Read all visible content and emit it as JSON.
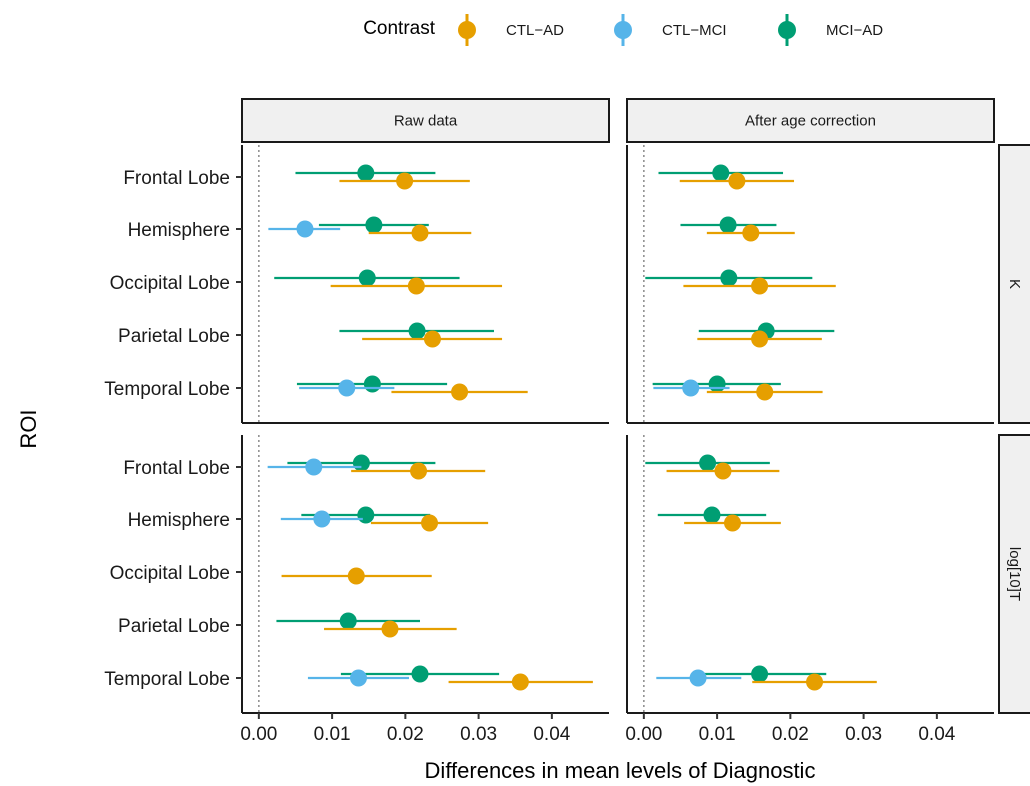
{
  "chart_data": {
    "type": "dot-errorbar",
    "xlabel": "Differences in mean levels of Diagnostic",
    "ylabel": "ROI",
    "xlim": [
      -0.0023,
      0.0478
    ],
    "xticks": [
      0.0,
      0.01,
      0.02,
      0.03,
      0.04
    ],
    "xtick_labels": [
      "0.00",
      "0.01",
      "0.02",
      "0.03",
      "0.04"
    ],
    "reference_line_x": 0,
    "legend": {
      "title": "Contrast",
      "position": "top",
      "entries": [
        {
          "key": "CTL-AD",
          "label": "CTL−AD",
          "color": "#E69F00"
        },
        {
          "key": "CTL-MCI",
          "label": "CTL−MCI",
          "color": "#56B4E9"
        },
        {
          "key": "MCI-AD",
          "label": "MCI−AD",
          "color": "#009E73"
        }
      ]
    },
    "columns": [
      "Raw data",
      "After age correction"
    ],
    "rows": [
      "K",
      "log[10]T"
    ],
    "rois": [
      "Frontal Lobe",
      "Hemisphere",
      "Occipital Lobe",
      "Parietal Lobe",
      "Temporal Lobe"
    ],
    "panels": [
      {
        "row": "K",
        "column": "Raw data",
        "points": [
          {
            "roi": "Frontal Lobe",
            "contrast": "MCI-AD",
            "estimate": 0.0146,
            "lower": 0.005,
            "upper": 0.0241
          },
          {
            "roi": "Frontal Lobe",
            "contrast": "CTL-AD",
            "estimate": 0.0199,
            "lower": 0.011,
            "upper": 0.0288
          },
          {
            "roi": "Hemisphere",
            "contrast": "CTL-MCI",
            "estimate": 0.0063,
            "lower": 0.0013,
            "upper": 0.0111
          },
          {
            "roi": "Hemisphere",
            "contrast": "MCI-AD",
            "estimate": 0.0157,
            "lower": 0.0082,
            "upper": 0.0232
          },
          {
            "roi": "Hemisphere",
            "contrast": "CTL-AD",
            "estimate": 0.022,
            "lower": 0.015,
            "upper": 0.029
          },
          {
            "roi": "Occipital Lobe",
            "contrast": "MCI-AD",
            "estimate": 0.0148,
            "lower": 0.0021,
            "upper": 0.0274
          },
          {
            "roi": "Occipital Lobe",
            "contrast": "CTL-AD",
            "estimate": 0.0215,
            "lower": 0.0098,
            "upper": 0.0332
          },
          {
            "roi": "Parietal Lobe",
            "contrast": "MCI-AD",
            "estimate": 0.0216,
            "lower": 0.011,
            "upper": 0.0321
          },
          {
            "roi": "Parietal Lobe",
            "contrast": "CTL-AD",
            "estimate": 0.0237,
            "lower": 0.0141,
            "upper": 0.0332
          },
          {
            "roi": "Temporal Lobe",
            "contrast": "MCI-AD",
            "estimate": 0.0155,
            "lower": 0.0052,
            "upper": 0.0257
          },
          {
            "roi": "Temporal Lobe",
            "contrast": "CTL-MCI",
            "estimate": 0.012,
            "lower": 0.0055,
            "upper": 0.0185
          },
          {
            "roi": "Temporal Lobe",
            "contrast": "CTL-AD",
            "estimate": 0.0274,
            "lower": 0.0181,
            "upper": 0.0367
          }
        ]
      },
      {
        "row": "K",
        "column": "After age correction",
        "points": [
          {
            "roi": "Frontal Lobe",
            "contrast": "MCI-AD",
            "estimate": 0.0105,
            "lower": 0.002,
            "upper": 0.019
          },
          {
            "roi": "Frontal Lobe",
            "contrast": "CTL-AD",
            "estimate": 0.0127,
            "lower": 0.0049,
            "upper": 0.0205
          },
          {
            "roi": "Hemisphere",
            "contrast": "MCI-AD",
            "estimate": 0.0115,
            "lower": 0.005,
            "upper": 0.0181
          },
          {
            "roi": "Hemisphere",
            "contrast": "CTL-AD",
            "estimate": 0.0146,
            "lower": 0.0086,
            "upper": 0.0206
          },
          {
            "roi": "Occipital Lobe",
            "contrast": "MCI-AD",
            "estimate": 0.0116,
            "lower": 0.0002,
            "upper": 0.023
          },
          {
            "roi": "Occipital Lobe",
            "contrast": "CTL-AD",
            "estimate": 0.0158,
            "lower": 0.0054,
            "upper": 0.0262
          },
          {
            "roi": "Parietal Lobe",
            "contrast": "MCI-AD",
            "estimate": 0.0167,
            "lower": 0.0075,
            "upper": 0.026
          },
          {
            "roi": "Parietal Lobe",
            "contrast": "CTL-AD",
            "estimate": 0.0158,
            "lower": 0.0073,
            "upper": 0.0243
          },
          {
            "roi": "Temporal Lobe",
            "contrast": "MCI-AD",
            "estimate": 0.01,
            "lower": 0.0012,
            "upper": 0.0187
          },
          {
            "roi": "Temporal Lobe",
            "contrast": "CTL-MCI",
            "estimate": 0.0064,
            "lower": 0.0013,
            "upper": 0.0117
          },
          {
            "roi": "Temporal Lobe",
            "contrast": "CTL-AD",
            "estimate": 0.0165,
            "lower": 0.0086,
            "upper": 0.0244
          }
        ]
      },
      {
        "row": "log[10]T",
        "column": "Raw data",
        "points": [
          {
            "roi": "Frontal Lobe",
            "contrast": "MCI-AD",
            "estimate": 0.014,
            "lower": 0.0039,
            "upper": 0.0241
          },
          {
            "roi": "Frontal Lobe",
            "contrast": "CTL-MCI",
            "estimate": 0.0075,
            "lower": 0.0012,
            "upper": 0.014
          },
          {
            "roi": "Frontal Lobe",
            "contrast": "CTL-AD",
            "estimate": 0.0218,
            "lower": 0.0126,
            "upper": 0.0309
          },
          {
            "roi": "Hemisphere",
            "contrast": "MCI-AD",
            "estimate": 0.0146,
            "lower": 0.0058,
            "upper": 0.0234
          },
          {
            "roi": "Hemisphere",
            "contrast": "CTL-MCI",
            "estimate": 0.0086,
            "lower": 0.003,
            "upper": 0.0142
          },
          {
            "roi": "Hemisphere",
            "contrast": "CTL-AD",
            "estimate": 0.0233,
            "lower": 0.0153,
            "upper": 0.0313
          },
          {
            "roi": "Occipital Lobe",
            "contrast": "CTL-AD",
            "estimate": 0.0133,
            "lower": 0.0031,
            "upper": 0.0236
          },
          {
            "roi": "Parietal Lobe",
            "contrast": "MCI-AD",
            "estimate": 0.0122,
            "lower": 0.0024,
            "upper": 0.022
          },
          {
            "roi": "Parietal Lobe",
            "contrast": "CTL-AD",
            "estimate": 0.0179,
            "lower": 0.0089,
            "upper": 0.027
          },
          {
            "roi": "Temporal Lobe",
            "contrast": "MCI-AD",
            "estimate": 0.022,
            "lower": 0.0112,
            "upper": 0.0328
          },
          {
            "roi": "Temporal Lobe",
            "contrast": "CTL-MCI",
            "estimate": 0.0136,
            "lower": 0.0067,
            "upper": 0.0205
          },
          {
            "roi": "Temporal Lobe",
            "contrast": "CTL-AD",
            "estimate": 0.0357,
            "lower": 0.0259,
            "upper": 0.0456
          }
        ]
      },
      {
        "row": "log[10]T",
        "column": "After age correction",
        "points": [
          {
            "roi": "Frontal Lobe",
            "contrast": "MCI-AD",
            "estimate": 0.0087,
            "lower": 0.0002,
            "upper": 0.0172
          },
          {
            "roi": "Frontal Lobe",
            "contrast": "CTL-AD",
            "estimate": 0.0108,
            "lower": 0.0031,
            "upper": 0.0185
          },
          {
            "roi": "Hemisphere",
            "contrast": "MCI-AD",
            "estimate": 0.0093,
            "lower": 0.0019,
            "upper": 0.0167
          },
          {
            "roi": "Hemisphere",
            "contrast": "CTL-AD",
            "estimate": 0.0121,
            "lower": 0.0055,
            "upper": 0.0187
          },
          {
            "roi": "Temporal Lobe",
            "contrast": "MCI-AD",
            "estimate": 0.0158,
            "lower": 0.0066,
            "upper": 0.0249
          },
          {
            "roi": "Temporal Lobe",
            "contrast": "CTL-MCI",
            "estimate": 0.0074,
            "lower": 0.0017,
            "upper": 0.0133
          },
          {
            "roi": "Temporal Lobe",
            "contrast": "CTL-AD",
            "estimate": 0.0233,
            "lower": 0.0148,
            "upper": 0.0318
          }
        ]
      }
    ]
  }
}
